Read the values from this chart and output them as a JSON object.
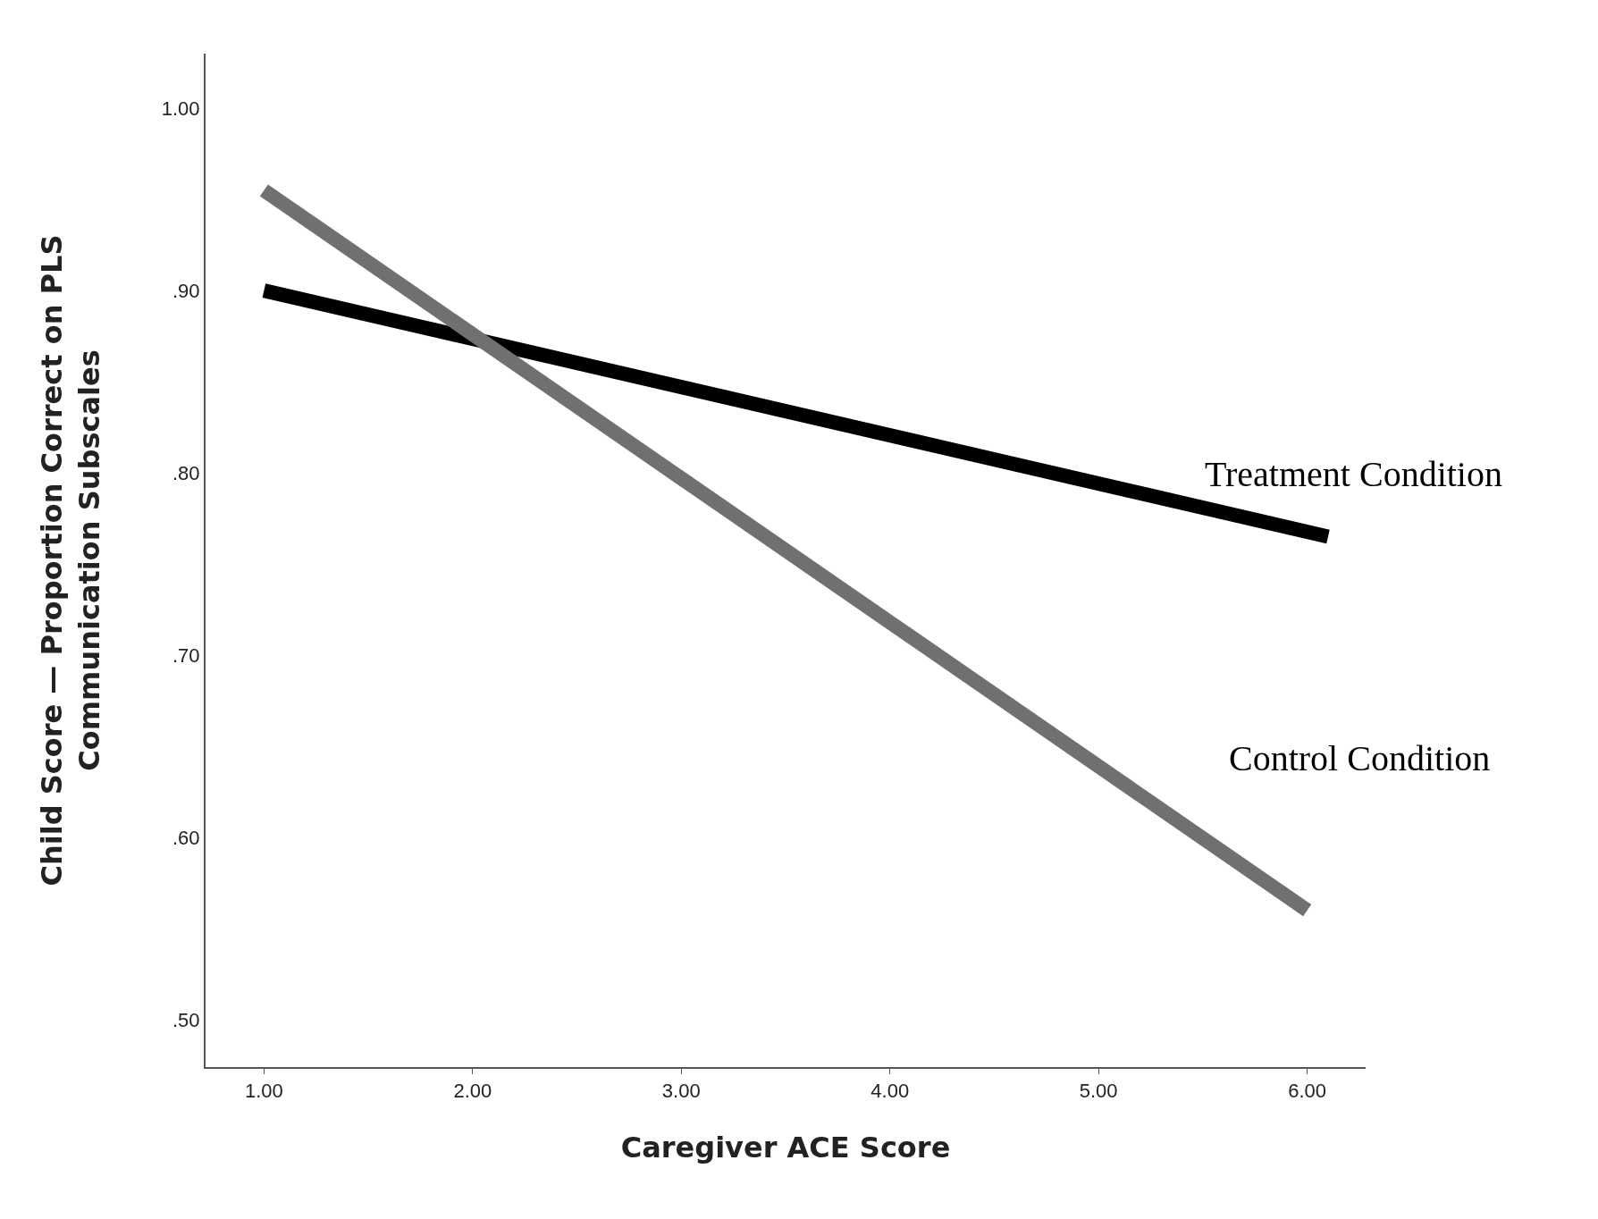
{
  "chart_data": {
    "type": "line",
    "xlabel": "Caregiver ACE Score",
    "ylabel": "Child Score — Proportion Correct on PLS\nCommunication Subscales",
    "series": [
      {
        "name": "Treatment Condition",
        "color": "#000000",
        "x": [
          1.0,
          6.1
        ],
        "values": [
          0.9,
          0.765
        ]
      },
      {
        "name": "Control Condition",
        "color": "#707070",
        "x": [
          1.0,
          6.0
        ],
        "values": [
          0.955,
          0.56
        ]
      }
    ],
    "xlim": [
      0.72,
      6.28
    ],
    "ylim": [
      0.474,
      1.03
    ],
    "xticks": [
      {
        "value": 1,
        "label": "1.00"
      },
      {
        "value": 2,
        "label": "2.00"
      },
      {
        "value": 3,
        "label": "3.00"
      },
      {
        "value": 4,
        "label": "4.00"
      },
      {
        "value": 5,
        "label": "5.00"
      },
      {
        "value": 6,
        "label": "6.00"
      }
    ],
    "yticks": [
      {
        "value": 0.5,
        "label": ".50"
      },
      {
        "value": 0.6,
        "label": ".60"
      },
      {
        "value": 0.7,
        "label": ".70"
      },
      {
        "value": 0.8,
        "label": ".80"
      },
      {
        "value": 0.9,
        "label": ".90"
      },
      {
        "value": 1.0,
        "label": "1.00"
      }
    ],
    "legend": false,
    "marker": "none",
    "line_style": "solid"
  }
}
